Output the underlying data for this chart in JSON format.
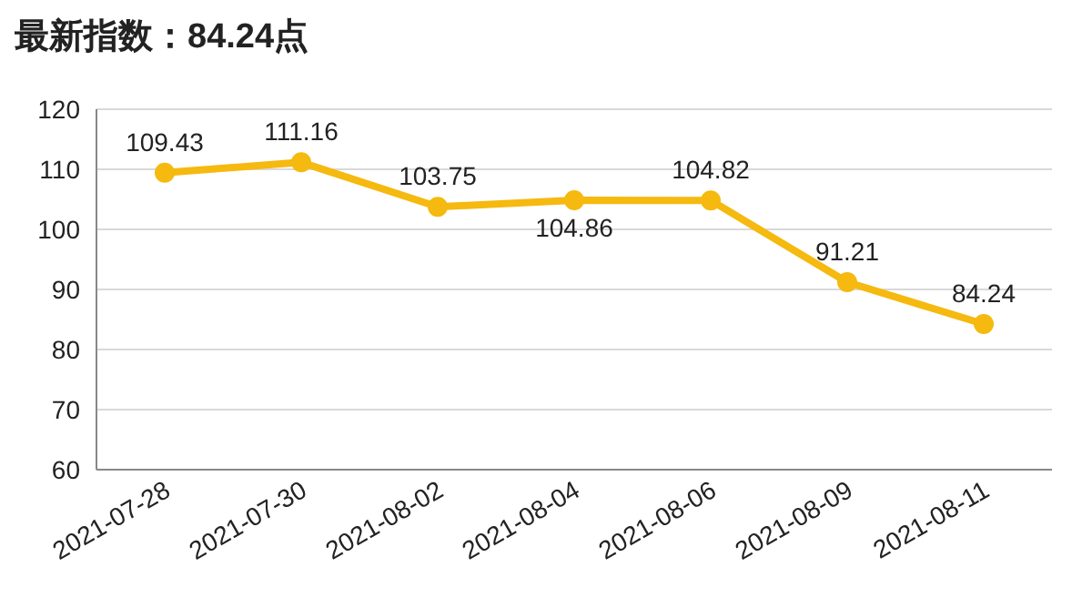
{
  "chart_data": {
    "type": "line",
    "title": "最新指数：84.24点",
    "categories": [
      "2021-07-28",
      "2021-07-30",
      "2021-08-02",
      "2021-08-04",
      "2021-08-06",
      "2021-08-09",
      "2021-08-11"
    ],
    "series": [
      {
        "color": "#f5b90f",
        "values": [
          109.43,
          111.16,
          103.75,
          104.86,
          104.82,
          91.21,
          84.24
        ]
      }
    ],
    "ylim": [
      60,
      120
    ],
    "yticks": [
      60,
      70,
      80,
      90,
      100,
      110,
      120
    ],
    "grid": "y",
    "marker": "circle",
    "line_style": "solid",
    "data_labels": true
  }
}
